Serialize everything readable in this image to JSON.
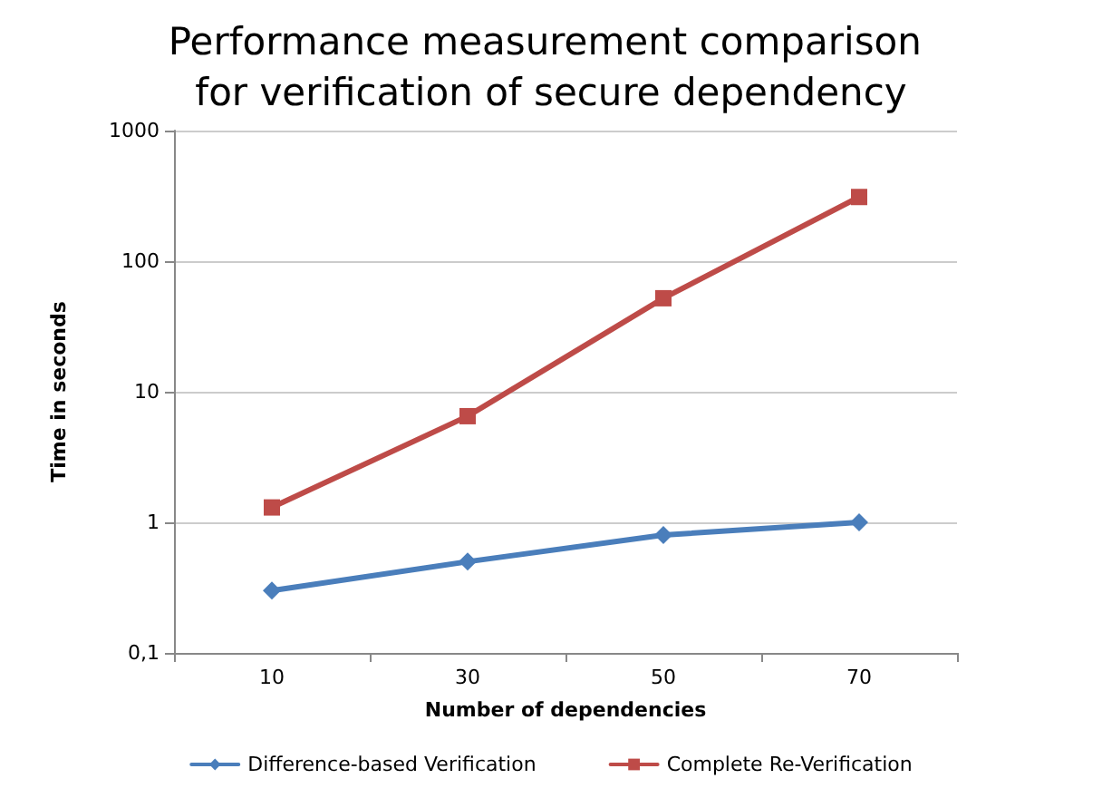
{
  "chart_data": {
    "type": "line",
    "title": "Performance measurement comparison for verification of secure dependency",
    "xlabel": "Number of dependencies",
    "ylabel": "Time in seconds",
    "categories": [
      "10",
      "30",
      "50",
      "70"
    ],
    "series": [
      {
        "name": "Difference-based Verification",
        "color": "#4a7ebb",
        "values": [
          0.3,
          0.5,
          0.8,
          1.0
        ],
        "marker": "diamond"
      },
      {
        "name": "Complete Re-Verification",
        "color": "#be4b48",
        "values": [
          1.3,
          6.5,
          52,
          310
        ],
        "marker": "square"
      }
    ],
    "log": "y",
    "ylim": [
      0.1,
      1000
    ],
    "yticks": [
      {
        "value": 0.1,
        "label": "0,1"
      },
      1,
      10,
      100,
      1000
    ],
    "grid": "y",
    "legend": "bottom",
    "line_style": "solid"
  }
}
